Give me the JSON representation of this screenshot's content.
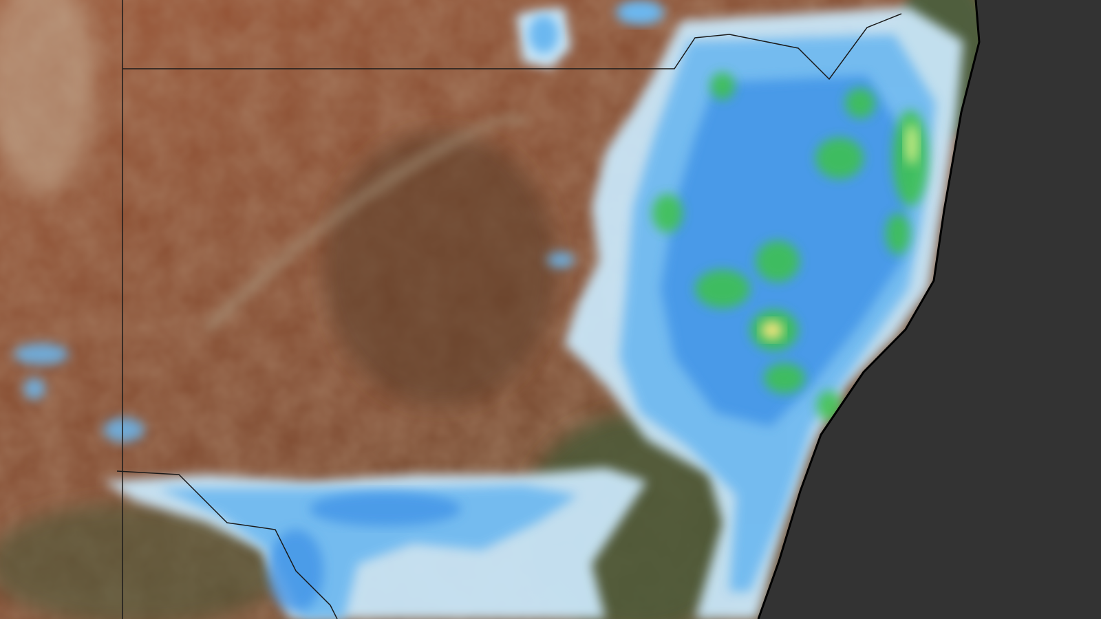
{
  "map": {
    "colors": {
      "ocean": "#333333",
      "land_arid": "#8a4a2e",
      "land_dark": "#6b4a33",
      "land_forest": "#4f5a3a",
      "rain_light": "#c9e6f8",
      "rain_mid": "#6cb8f0",
      "rain_heavy": "#3b8fe6",
      "rain_green": "#3cc24a",
      "rain_yellow": "#e8e27a",
      "border": "#1a1a1a",
      "coastline": "#000000"
    },
    "layers": [
      "satellite-imagery",
      "rainfall-overlay",
      "state-borders",
      "coastline"
    ]
  }
}
